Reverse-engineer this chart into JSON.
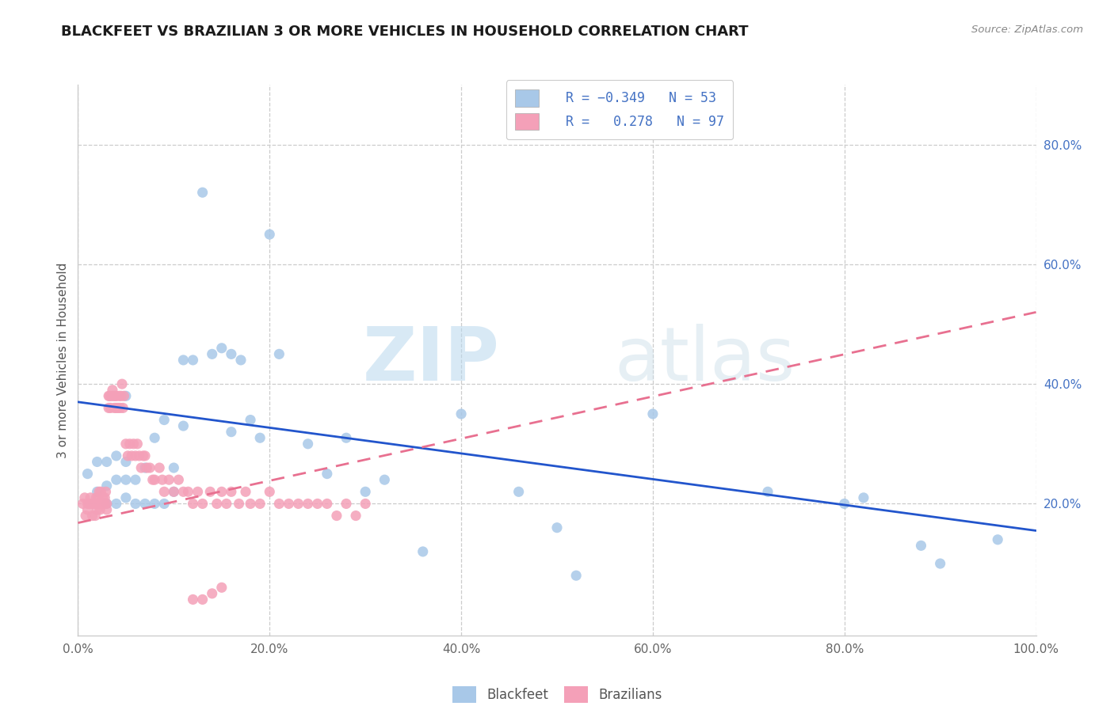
{
  "title": "BLACKFEET VS BRAZILIAN 3 OR MORE VEHICLES IN HOUSEHOLD CORRELATION CHART",
  "source": "Source: ZipAtlas.com",
  "ylabel": "3 or more Vehicles in Household",
  "x_ticklabels": [
    "0.0%",
    "20.0%",
    "40.0%",
    "60.0%",
    "80.0%",
    "100.0%"
  ],
  "x_ticks": [
    0.0,
    0.2,
    0.4,
    0.6,
    0.8,
    1.0
  ],
  "y_ticklabels": [
    "20.0%",
    "40.0%",
    "60.0%",
    "80.0%"
  ],
  "y_ticks_right": [
    0.2,
    0.4,
    0.6,
    0.8
  ],
  "xlim": [
    0.0,
    1.0
  ],
  "ylim": [
    -0.02,
    0.9
  ],
  "blackfeet_color": "#a8c8e8",
  "brazilian_color": "#f4a0b8",
  "trendline_blackfeet_color": "#2255cc",
  "trendline_brazilian_color": "#e87090",
  "watermark_zip": "ZIP",
  "watermark_atlas": "atlas",
  "blackfeet_x": [
    0.01,
    0.02,
    0.02,
    0.03,
    0.03,
    0.03,
    0.04,
    0.04,
    0.04,
    0.05,
    0.05,
    0.05,
    0.05,
    0.06,
    0.06,
    0.07,
    0.07,
    0.08,
    0.08,
    0.09,
    0.09,
    0.1,
    0.1,
    0.11,
    0.11,
    0.12,
    0.13,
    0.14,
    0.15,
    0.16,
    0.16,
    0.17,
    0.18,
    0.19,
    0.2,
    0.21,
    0.24,
    0.26,
    0.28,
    0.3,
    0.32,
    0.36,
    0.4,
    0.46,
    0.5,
    0.52,
    0.6,
    0.72,
    0.8,
    0.82,
    0.88,
    0.9,
    0.96
  ],
  "blackfeet_y": [
    0.25,
    0.22,
    0.27,
    0.2,
    0.23,
    0.27,
    0.2,
    0.24,
    0.28,
    0.21,
    0.24,
    0.27,
    0.38,
    0.2,
    0.24,
    0.2,
    0.26,
    0.2,
    0.31,
    0.34,
    0.2,
    0.22,
    0.26,
    0.33,
    0.44,
    0.44,
    0.72,
    0.45,
    0.46,
    0.45,
    0.32,
    0.44,
    0.34,
    0.31,
    0.65,
    0.45,
    0.3,
    0.25,
    0.31,
    0.22,
    0.24,
    0.12,
    0.35,
    0.22,
    0.16,
    0.08,
    0.35,
    0.22,
    0.2,
    0.21,
    0.13,
    0.1,
    0.14
  ],
  "brazilian_x": [
    0.005,
    0.007,
    0.008,
    0.01,
    0.01,
    0.012,
    0.013,
    0.015,
    0.015,
    0.016,
    0.018,
    0.018,
    0.019,
    0.02,
    0.02,
    0.021,
    0.022,
    0.022,
    0.023,
    0.023,
    0.024,
    0.025,
    0.026,
    0.027,
    0.028,
    0.028,
    0.029,
    0.03,
    0.03,
    0.032,
    0.032,
    0.033,
    0.034,
    0.035,
    0.036,
    0.037,
    0.038,
    0.039,
    0.04,
    0.04,
    0.042,
    0.043,
    0.044,
    0.045,
    0.046,
    0.047,
    0.048,
    0.05,
    0.052,
    0.054,
    0.056,
    0.058,
    0.06,
    0.062,
    0.064,
    0.066,
    0.068,
    0.07,
    0.072,
    0.075,
    0.078,
    0.08,
    0.085,
    0.088,
    0.09,
    0.095,
    0.1,
    0.105,
    0.11,
    0.115,
    0.12,
    0.125,
    0.13,
    0.138,
    0.145,
    0.15,
    0.155,
    0.16,
    0.168,
    0.175,
    0.18,
    0.19,
    0.2,
    0.21,
    0.22,
    0.23,
    0.24,
    0.25,
    0.26,
    0.27,
    0.28,
    0.29,
    0.3,
    0.12,
    0.13,
    0.14,
    0.15
  ],
  "brazilian_y": [
    0.2,
    0.21,
    0.18,
    0.2,
    0.19,
    0.2,
    0.21,
    0.2,
    0.18,
    0.2,
    0.18,
    0.2,
    0.21,
    0.2,
    0.19,
    0.21,
    0.22,
    0.2,
    0.19,
    0.2,
    0.22,
    0.2,
    0.21,
    0.2,
    0.21,
    0.2,
    0.22,
    0.2,
    0.19,
    0.38,
    0.36,
    0.38,
    0.36,
    0.38,
    0.39,
    0.38,
    0.36,
    0.38,
    0.36,
    0.38,
    0.36,
    0.38,
    0.36,
    0.38,
    0.4,
    0.36,
    0.38,
    0.3,
    0.28,
    0.3,
    0.28,
    0.3,
    0.28,
    0.3,
    0.28,
    0.26,
    0.28,
    0.28,
    0.26,
    0.26,
    0.24,
    0.24,
    0.26,
    0.24,
    0.22,
    0.24,
    0.22,
    0.24,
    0.22,
    0.22,
    0.2,
    0.22,
    0.2,
    0.22,
    0.2,
    0.22,
    0.2,
    0.22,
    0.2,
    0.22,
    0.2,
    0.2,
    0.22,
    0.2,
    0.2,
    0.2,
    0.2,
    0.2,
    0.2,
    0.18,
    0.2,
    0.18,
    0.2,
    0.04,
    0.04,
    0.05,
    0.06
  ]
}
